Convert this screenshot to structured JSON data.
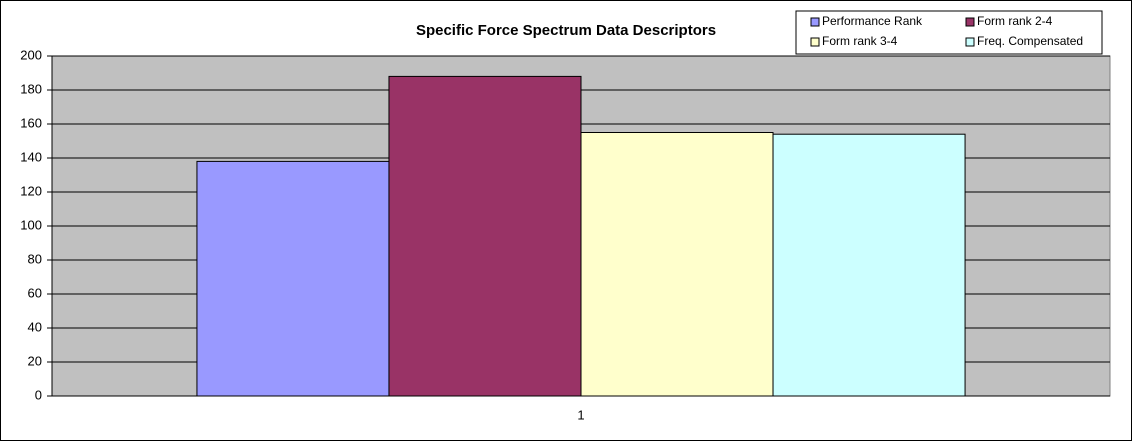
{
  "chart_data": {
    "type": "bar",
    "title": "Specific Force Spectrum Data Descriptors",
    "categories": [
      "1"
    ],
    "series": [
      {
        "name": "Performance Rank",
        "color": "#9999ff",
        "values": [
          138
        ]
      },
      {
        "name": "Form rank 2-4",
        "color": "#993366",
        "values": [
          188
        ]
      },
      {
        "name": "Form rank 3-4",
        "color": "#ffffcc",
        "values": [
          155
        ]
      },
      {
        "name": "Freq. Compensated",
        "color": "#ccffff",
        "values": [
          154
        ]
      }
    ],
    "ylim": [
      0,
      200
    ],
    "yticks": [
      0,
      20,
      40,
      60,
      80,
      100,
      120,
      140,
      160,
      180,
      200
    ],
    "grid": true,
    "legend": "top-right",
    "plot_background": "#c0c0c0"
  }
}
